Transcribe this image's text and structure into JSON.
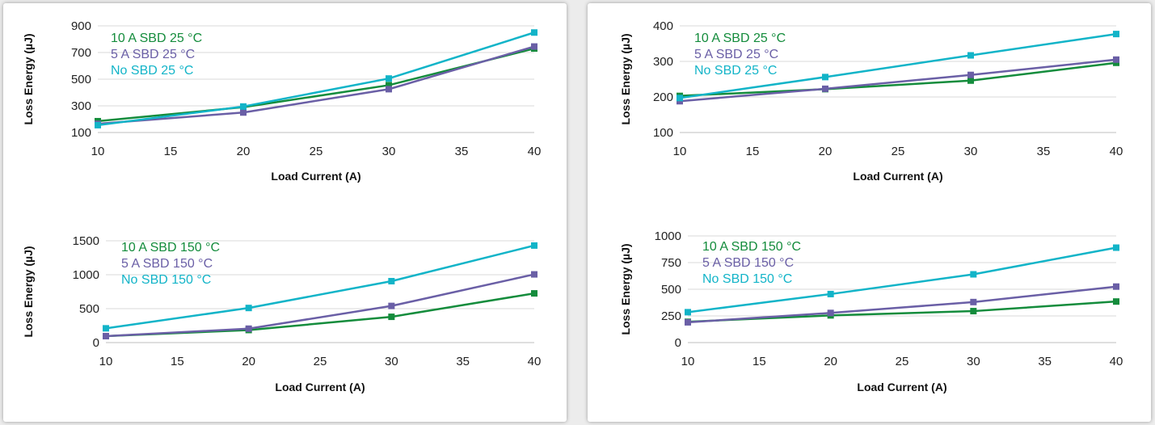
{
  "chart_data": [
    {
      "type": "line",
      "xlabel": "Load Current (A)",
      "ylabel": "Loss Energy (µJ)",
      "xlim": [
        10,
        40
      ],
      "xticks": [
        "10",
        "15",
        "20",
        "25",
        "30",
        "35",
        "40"
      ],
      "ylim": [
        100,
        900
      ],
      "yticks": [
        "100",
        "300",
        "500",
        "700",
        "900"
      ],
      "grid": true,
      "legend": "top-left",
      "series": [
        {
          "name": "10 A SBD 25 °C",
          "color": "#148c3c",
          "x": [
            10,
            20,
            30,
            40
          ],
          "values": [
            185,
            290,
            455,
            730
          ]
        },
        {
          "name": "5 A SBD 25 °C",
          "color": "#6a5fa6",
          "x": [
            10,
            20,
            30,
            40
          ],
          "values": [
            165,
            250,
            425,
            745
          ]
        },
        {
          "name": "No SBD 25 °C",
          "color": "#12b4c8",
          "x": [
            10,
            20,
            30,
            40
          ],
          "values": [
            155,
            295,
            505,
            850
          ]
        }
      ]
    },
    {
      "type": "line",
      "xlabel": "Load Current (A)",
      "ylabel": "Loss Energy (µJ)",
      "xlim": [
        10,
        40
      ],
      "xticks": [
        "10",
        "15",
        "20",
        "25",
        "30",
        "35",
        "40"
      ],
      "ylim": [
        100,
        400
      ],
      "yticks": [
        "100",
        "200",
        "300",
        "400"
      ],
      "grid": true,
      "legend": "top-left",
      "series": [
        {
          "name": "10 A SBD 25 °C",
          "color": "#148c3c",
          "x": [
            10,
            20,
            30,
            40
          ],
          "values": [
            203,
            222,
            246,
            296
          ]
        },
        {
          "name": "5 A SBD 25 °C",
          "color": "#6a5fa6",
          "x": [
            10,
            20,
            30,
            40
          ],
          "values": [
            188,
            223,
            262,
            305
          ]
        },
        {
          "name": "No SBD 25 °C",
          "color": "#12b4c8",
          "x": [
            10,
            20,
            30,
            40
          ],
          "values": [
            197,
            256,
            317,
            377
          ]
        }
      ]
    },
    {
      "type": "line",
      "xlabel": "Load Current (A)",
      "ylabel": "Loss Energy (µJ)",
      "xlim": [
        10,
        40
      ],
      "xticks": [
        "10",
        "15",
        "20",
        "25",
        "30",
        "35",
        "40"
      ],
      "ylim": [
        0,
        1500
      ],
      "yticks": [
        "0",
        "500",
        "1000",
        "1500"
      ],
      "grid": true,
      "legend": "top-left",
      "series": [
        {
          "name": "10 A SBD 150 °C",
          "color": "#148c3c",
          "x": [
            10,
            20,
            30,
            40
          ],
          "values": [
            95,
            185,
            380,
            725
          ]
        },
        {
          "name": "5 A SBD 150 °C",
          "color": "#6a5fa6",
          "x": [
            10,
            20,
            30,
            40
          ],
          "values": [
            95,
            205,
            540,
            1005
          ]
        },
        {
          "name": "No SBD 150 °C",
          "color": "#12b4c8",
          "x": [
            10,
            20,
            30,
            40
          ],
          "values": [
            210,
            510,
            905,
            1430
          ]
        }
      ]
    },
    {
      "type": "line",
      "xlabel": "Load Current (A)",
      "ylabel": "Loss Energy (µJ)",
      "xlim": [
        10,
        40
      ],
      "xticks": [
        "10",
        "15",
        "20",
        "25",
        "30",
        "35",
        "40"
      ],
      "ylim": [
        0,
        1000
      ],
      "yticks": [
        "0",
        "250",
        "500",
        "750",
        "1000"
      ],
      "grid": true,
      "legend": "top-left",
      "series": [
        {
          "name": "10 A SBD 150 °C",
          "color": "#148c3c",
          "x": [
            10,
            20,
            30,
            40
          ],
          "values": [
            195,
            255,
            295,
            385
          ]
        },
        {
          "name": "5 A SBD 150 °C",
          "color": "#6a5fa6",
          "x": [
            10,
            20,
            30,
            40
          ],
          "values": [
            190,
            278,
            380,
            525
          ]
        },
        {
          "name": "No SBD 150 °C",
          "color": "#12b4c8",
          "x": [
            10,
            20,
            30,
            40
          ],
          "values": [
            285,
            455,
            640,
            890
          ]
        }
      ]
    }
  ]
}
